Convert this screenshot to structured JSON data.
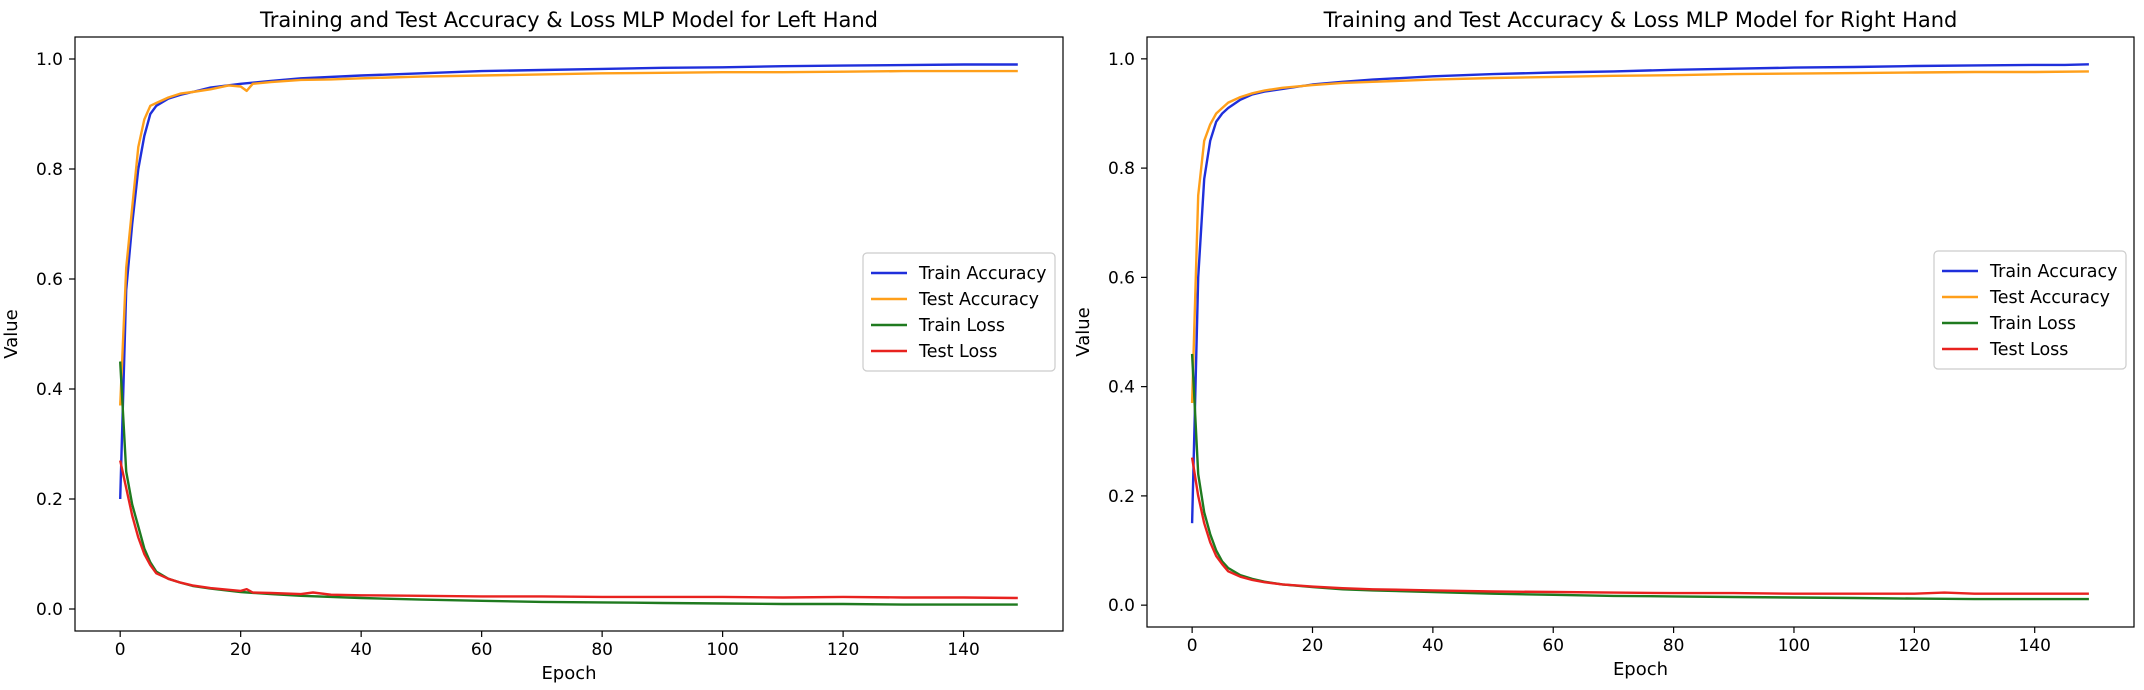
{
  "chart_data": [
    {
      "type": "line",
      "title": "Training and Test Accuracy & Loss MLP Model for Left Hand",
      "xlabel": "Epoch",
      "ylabel": "Value",
      "xlim": [
        -7.5,
        156.5
      ],
      "ylim": [
        -0.04,
        1.04
      ],
      "xticks": [
        "0",
        "20",
        "40",
        "60",
        "80",
        "100",
        "120",
        "140"
      ],
      "yticks": [
        "0.0",
        "0.2",
        "0.4",
        "0.6",
        "0.8",
        "1.0"
      ],
      "grid": false,
      "legend_placement": "center-right",
      "series": [
        {
          "name": "Train Accuracy",
          "color": "#1f2fdb",
          "x": [
            0,
            1,
            2,
            3,
            4,
            5,
            6,
            8,
            10,
            12,
            15,
            20,
            25,
            30,
            40,
            50,
            60,
            70,
            80,
            90,
            100,
            110,
            120,
            130,
            140,
            145,
            149
          ],
          "y": [
            0.2,
            0.58,
            0.7,
            0.8,
            0.86,
            0.9,
            0.915,
            0.928,
            0.935,
            0.94,
            0.948,
            0.955,
            0.96,
            0.965,
            0.97,
            0.974,
            0.978,
            0.98,
            0.982,
            0.984,
            0.985,
            0.987,
            0.988,
            0.989,
            0.99,
            0.99,
            0.99
          ]
        },
        {
          "name": "Test Accuracy",
          "color": "#ff9f1a",
          "x": [
            0,
            1,
            2,
            3,
            4,
            5,
            6,
            8,
            10,
            12,
            15,
            18,
            20,
            21,
            22,
            25,
            30,
            35,
            40,
            50,
            60,
            70,
            80,
            90,
            100,
            110,
            120,
            130,
            140,
            145,
            149
          ],
          "y": [
            0.37,
            0.62,
            0.73,
            0.84,
            0.89,
            0.915,
            0.92,
            0.93,
            0.937,
            0.94,
            0.945,
            0.952,
            0.95,
            0.942,
            0.955,
            0.958,
            0.962,
            0.963,
            0.965,
            0.968,
            0.97,
            0.972,
            0.974,
            0.975,
            0.976,
            0.976,
            0.977,
            0.978,
            0.978,
            0.978,
            0.978
          ]
        },
        {
          "name": "Train Loss",
          "color": "#1f7a1f",
          "x": [
            0,
            1,
            2,
            3,
            4,
            5,
            6,
            8,
            10,
            12,
            15,
            20,
            25,
            30,
            40,
            50,
            60,
            70,
            80,
            90,
            100,
            110,
            120,
            130,
            140,
            149
          ],
          "y": [
            0.45,
            0.25,
            0.19,
            0.15,
            0.11,
            0.085,
            0.068,
            0.055,
            0.048,
            0.042,
            0.037,
            0.031,
            0.027,
            0.024,
            0.02,
            0.017,
            0.015,
            0.013,
            0.012,
            0.011,
            0.01,
            0.009,
            0.009,
            0.008,
            0.008,
            0.008
          ]
        },
        {
          "name": "Test Loss",
          "color": "#e8221f",
          "x": [
            0,
            1,
            2,
            3,
            4,
            5,
            6,
            8,
            10,
            12,
            15,
            20,
            21,
            22,
            25,
            30,
            32,
            35,
            40,
            50,
            60,
            70,
            80,
            90,
            100,
            110,
            120,
            130,
            140,
            149
          ],
          "y": [
            0.27,
            0.22,
            0.17,
            0.13,
            0.1,
            0.08,
            0.065,
            0.055,
            0.048,
            0.043,
            0.038,
            0.033,
            0.036,
            0.03,
            0.029,
            0.027,
            0.03,
            0.026,
            0.025,
            0.024,
            0.023,
            0.023,
            0.022,
            0.022,
            0.022,
            0.021,
            0.022,
            0.021,
            0.021,
            0.02
          ]
        }
      ]
    },
    {
      "type": "line",
      "title": "Training and Test Accuracy & Loss MLP Model for Right Hand",
      "xlabel": "Epoch",
      "ylabel": "Value",
      "xlim": [
        -7.5,
        156.5
      ],
      "ylim": [
        -0.04,
        1.04
      ],
      "xticks": [
        "0",
        "20",
        "40",
        "60",
        "80",
        "100",
        "120",
        "140"
      ],
      "yticks": [
        "0.0",
        "0.2",
        "0.4",
        "0.6",
        "0.8",
        "1.0"
      ],
      "grid": false,
      "legend_placement": "center-right",
      "series": [
        {
          "name": "Train Accuracy",
          "color": "#1f2fdb",
          "x": [
            0,
            1,
            2,
            3,
            4,
            5,
            6,
            8,
            10,
            12,
            15,
            20,
            25,
            30,
            40,
            50,
            60,
            70,
            80,
            90,
            100,
            110,
            120,
            130,
            140,
            145,
            149
          ],
          "y": [
            0.15,
            0.6,
            0.78,
            0.85,
            0.885,
            0.9,
            0.91,
            0.925,
            0.935,
            0.94,
            0.945,
            0.953,
            0.958,
            0.962,
            0.968,
            0.972,
            0.975,
            0.977,
            0.98,
            0.982,
            0.984,
            0.985,
            0.987,
            0.988,
            0.989,
            0.989,
            0.99
          ]
        },
        {
          "name": "Test Accuracy",
          "color": "#ff9f1a",
          "x": [
            0,
            1,
            2,
            3,
            4,
            5,
            6,
            8,
            10,
            12,
            15,
            20,
            25,
            30,
            40,
            50,
            60,
            70,
            80,
            90,
            100,
            110,
            120,
            130,
            140,
            149
          ],
          "y": [
            0.37,
            0.75,
            0.85,
            0.88,
            0.9,
            0.91,
            0.92,
            0.93,
            0.937,
            0.942,
            0.947,
            0.952,
            0.956,
            0.958,
            0.962,
            0.965,
            0.967,
            0.969,
            0.97,
            0.972,
            0.973,
            0.974,
            0.975,
            0.976,
            0.976,
            0.977
          ]
        },
        {
          "name": "Train Loss",
          "color": "#1f7a1f",
          "x": [
            0,
            1,
            2,
            3,
            4,
            5,
            6,
            8,
            10,
            12,
            15,
            20,
            25,
            30,
            40,
            50,
            60,
            70,
            80,
            90,
            100,
            110,
            120,
            130,
            140,
            149
          ],
          "y": [
            0.46,
            0.24,
            0.17,
            0.13,
            0.1,
            0.08,
            0.068,
            0.055,
            0.048,
            0.043,
            0.038,
            0.033,
            0.029,
            0.027,
            0.024,
            0.021,
            0.019,
            0.017,
            0.016,
            0.015,
            0.014,
            0.013,
            0.012,
            0.011,
            0.011,
            0.011
          ]
        },
        {
          "name": "Test Loss",
          "color": "#e8221f",
          "x": [
            0,
            1,
            2,
            3,
            4,
            5,
            6,
            8,
            10,
            12,
            15,
            20,
            25,
            30,
            40,
            50,
            60,
            70,
            80,
            90,
            100,
            110,
            120,
            125,
            130,
            140,
            149
          ],
          "y": [
            0.27,
            0.2,
            0.15,
            0.115,
            0.09,
            0.075,
            0.062,
            0.052,
            0.046,
            0.042,
            0.038,
            0.034,
            0.031,
            0.029,
            0.027,
            0.025,
            0.024,
            0.023,
            0.022,
            0.022,
            0.021,
            0.021,
            0.021,
            0.023,
            0.021,
            0.021,
            0.021
          ]
        }
      ]
    }
  ]
}
